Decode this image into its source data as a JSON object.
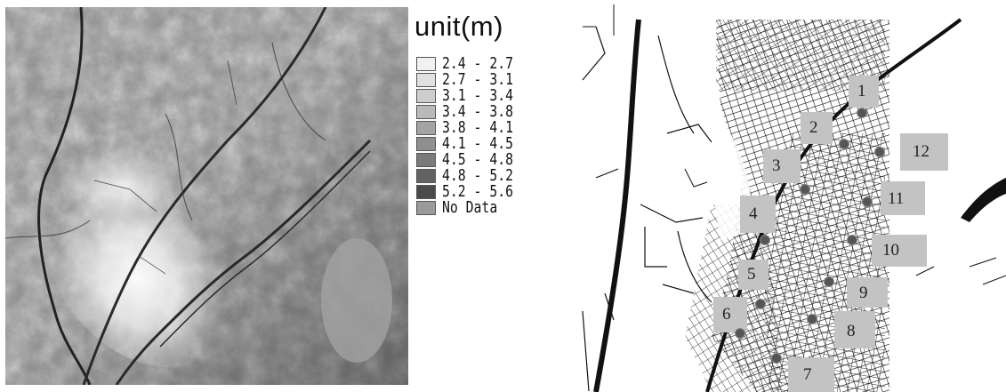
{
  "legend": {
    "title": "unit(m)",
    "items": [
      {
        "label": "2.4 - 2.7",
        "color": "#f1f1f1"
      },
      {
        "label": "2.7 - 3.1",
        "color": "#e0e0e0"
      },
      {
        "label": "3.1 - 3.4",
        "color": "#cdcdcd"
      },
      {
        "label": "3.4 - 3.8",
        "color": "#b9b9b9"
      },
      {
        "label": "3.8 - 4.1",
        "color": "#a4a4a4"
      },
      {
        "label": "4.1 - 4.5",
        "color": "#8f8f8f"
      },
      {
        "label": "4.5 - 4.8",
        "color": "#7a7a7a"
      },
      {
        "label": "4.8 - 5.2",
        "color": "#636363"
      },
      {
        "label": "5.2 - 5.6",
        "color": "#4a4a4a"
      },
      {
        "label": "No Data",
        "color": "#9a9a9a"
      }
    ]
  },
  "sites": [
    {
      "label": "1"
    },
    {
      "label": "2"
    },
    {
      "label": "3"
    },
    {
      "label": "4"
    },
    {
      "label": "5"
    },
    {
      "label": "6"
    },
    {
      "label": "7"
    },
    {
      "label": "8"
    },
    {
      "label": "9"
    },
    {
      "label": "10"
    },
    {
      "label": "11"
    },
    {
      "label": "12"
    }
  ],
  "colors": {
    "road": "#2a2a2a",
    "river": "#111111",
    "label_box": "#c3c3c3",
    "site_marker": "#555555"
  }
}
